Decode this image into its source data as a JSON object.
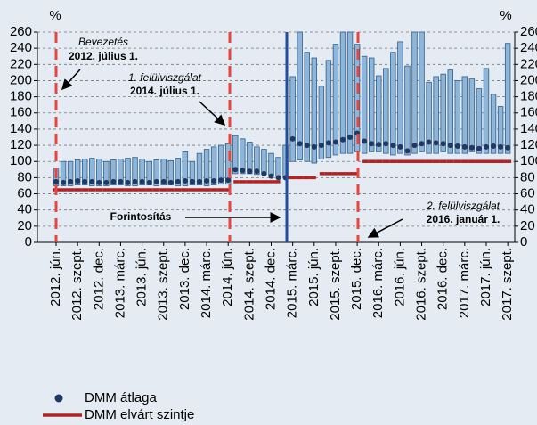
{
  "chart_data": {
    "type": "floating_bar",
    "y_unit": "%",
    "y2_unit": "%",
    "categories": [
      "2012. jún.",
      null,
      null,
      "2012. szept.",
      null,
      null,
      "2012. dec.",
      null,
      null,
      "2013. márc.",
      null,
      null,
      "2013. jún.",
      null,
      null,
      "2013. szept.",
      null,
      null,
      "2013. dec.",
      null,
      null,
      "2014. márc.",
      null,
      null,
      "2014. jún.",
      null,
      null,
      "2014. szept.",
      null,
      null,
      "2014. dec.",
      null,
      null,
      "2015. márc.",
      null,
      null,
      "2015. jún.",
      null,
      null,
      "2015. szept.",
      null,
      null,
      "2015. dec.",
      null,
      null,
      "2016. márc.",
      null,
      null,
      "2016. jún.",
      null,
      null,
      "2016. szept.",
      null,
      null,
      "2016. dec.",
      null,
      null,
      "2017. márc.",
      null,
      null,
      "2017. jún.",
      null,
      null,
      "2017. szept."
    ],
    "range_color": "#8fb6d8",
    "range_low": [
      70,
      70,
      70,
      71,
      71,
      70,
      70,
      70,
      71,
      71,
      70,
      70,
      71,
      71,
      70,
      71,
      71,
      70,
      70,
      71,
      71,
      70,
      71,
      72,
      72,
      85,
      85,
      85,
      84,
      84,
      83,
      82,
      80,
      100,
      102,
      100,
      98,
      103,
      105,
      108,
      110,
      110,
      112,
      110,
      112,
      112,
      110,
      108,
      110,
      108,
      110,
      112,
      110,
      110,
      112,
      110,
      110,
      110,
      112,
      110,
      110,
      110,
      110,
      110
    ],
    "range_high": [
      92,
      100,
      100,
      102,
      103,
      104,
      103,
      100,
      102,
      103,
      104,
      105,
      103,
      100,
      102,
      103,
      101,
      104,
      112,
      100,
      110,
      115,
      118,
      120,
      122,
      132,
      128,
      124,
      118,
      115,
      110,
      105,
      120,
      205,
      260,
      235,
      228,
      193,
      225,
      245,
      260,
      260,
      245,
      230,
      228,
      206,
      215,
      235,
      248,
      218,
      260,
      260,
      198,
      205,
      208,
      213,
      200,
      205,
      202,
      190,
      215,
      183,
      168,
      246
    ],
    "series": [
      {
        "name": "DMM átlaga",
        "color": "#1f3864",
        "values": [
          75,
          74,
          75,
          76,
          75,
          75,
          74,
          74,
          75,
          75,
          74,
          75,
          75,
          74,
          75,
          75,
          74,
          75,
          76,
          75,
          75,
          76,
          76,
          77,
          77,
          90,
          89,
          88,
          88,
          85,
          82,
          80,
          80,
          128,
          122,
          120,
          118,
          120,
          123,
          124,
          127,
          130,
          135,
          125,
          122,
          121,
          122,
          120,
          118,
          113,
          120,
          122,
          124,
          123,
          122,
          120,
          119,
          118,
          117,
          116,
          118,
          119,
          118,
          117
        ]
      },
      {
        "name": "DMM elvárt szintje",
        "color": "#b22222",
        "values": [
          65,
          65,
          65,
          65,
          65,
          65,
          65,
          65,
          65,
          65,
          65,
          65,
          65,
          65,
          65,
          65,
          65,
          65,
          65,
          65,
          65,
          65,
          65,
          65,
          65,
          75,
          75,
          75,
          75,
          75,
          75,
          75,
          80,
          80,
          80,
          80,
          80,
          85,
          85,
          85,
          85,
          85,
          85,
          100,
          100,
          100,
          100,
          100,
          100,
          100,
          100,
          100,
          100,
          100,
          100,
          100,
          100,
          100,
          100,
          100,
          100,
          100,
          100,
          100
        ]
      }
    ],
    "ylim": [
      0,
      260
    ],
    "yticks": [
      0,
      20,
      40,
      60,
      80,
      100,
      120,
      140,
      160,
      180,
      200,
      220,
      240,
      260
    ],
    "y2lim": [
      0,
      260
    ],
    "y2ticks": [
      0,
      20,
      40,
      60,
      80,
      100,
      120,
      140,
      160,
      180,
      200,
      220,
      240,
      260
    ],
    "grid": true,
    "legend": "bottom-left",
    "annotations": [
      "Bevezetés",
      "2012. július 1.",
      "1. felülviszgálat",
      "2014. július 1.",
      "Forintosítás",
      "2. felülviszgálat",
      "2016. január 1."
    ]
  }
}
